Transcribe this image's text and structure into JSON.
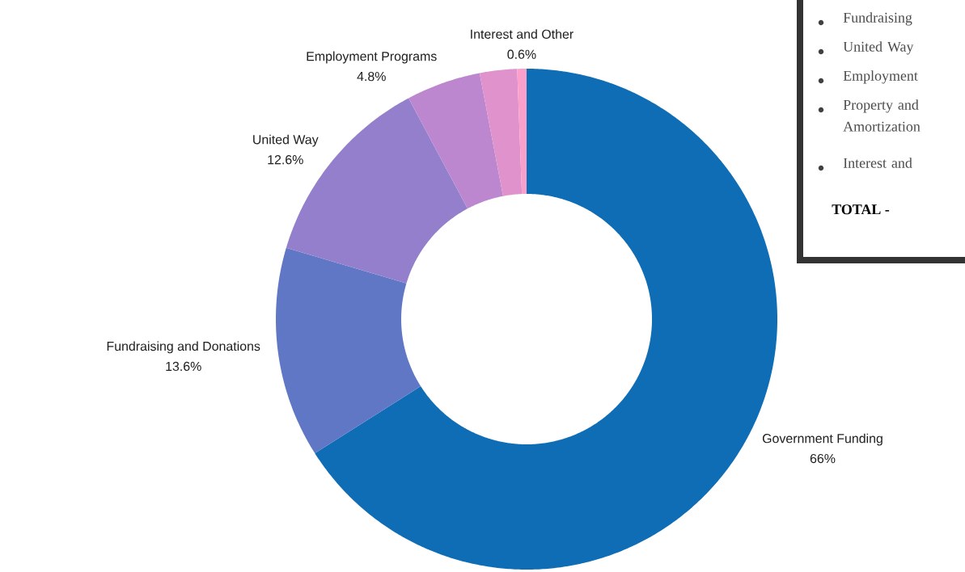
{
  "chart_data": {
    "type": "donut",
    "categories": [
      "Government Funding",
      "Fundraising and Donations",
      "United Way",
      "Employment Programs",
      null,
      "Interest and Other"
    ],
    "values": [
      66,
      13.6,
      12.6,
      4.8,
      2.4,
      0.6
    ],
    "value_labels": [
      "66%",
      "13.6%",
      "12.6%",
      "4.8%",
      null,
      "0.6%"
    ],
    "colors": [
      "#0f6db5",
      "#6077c5",
      "#937fcb",
      "#bd87d0",
      "#df92cc",
      "#fba0cb"
    ],
    "annotations": [
      "Fundraising",
      "United Way",
      "Employment",
      "Property and Amortization",
      "Interest and",
      "TOTAL -"
    ]
  }
}
